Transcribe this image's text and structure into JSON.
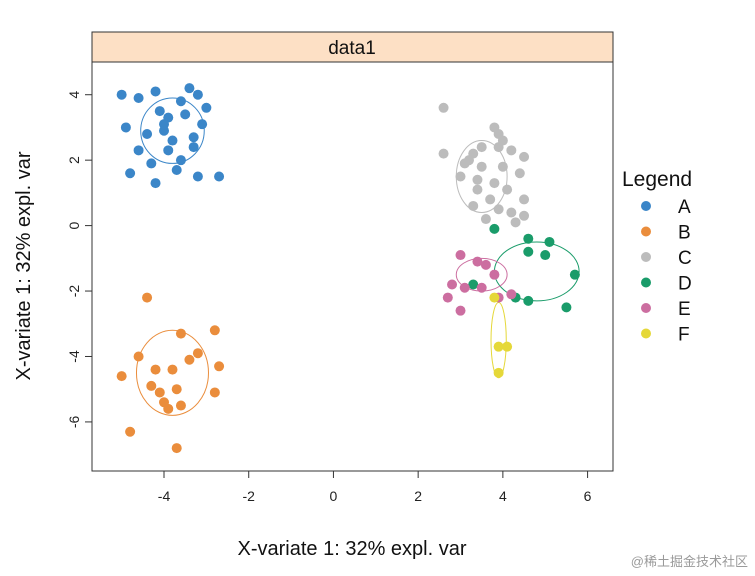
{
  "chart_data": {
    "type": "scatter",
    "panel_title": "data1",
    "xlabel": "X-variate 1: 32% expl. var",
    "ylabel": "X-variate 1: 32% expl. var",
    "xlim": [
      -5.7,
      6.6
    ],
    "ylim": [
      -7.5,
      5.0
    ],
    "xticks": [
      -4,
      -2,
      0,
      2,
      4,
      6
    ],
    "yticks": [
      -6,
      -4,
      -2,
      0,
      2,
      4
    ],
    "grid": false,
    "legend_title": "Legend",
    "legend_position": "right",
    "series": [
      {
        "name": "A",
        "color": "#3b86c8",
        "ellipse": {
          "cx": -3.8,
          "cy": 2.9,
          "rx": 0.75,
          "ry": 1.0
        },
        "points": [
          [
            -5.0,
            4.0
          ],
          [
            -4.6,
            3.9
          ],
          [
            -4.2,
            4.1
          ],
          [
            -3.6,
            3.8
          ],
          [
            -3.2,
            4.0
          ],
          [
            -4.9,
            3.0
          ],
          [
            -4.1,
            3.5
          ],
          [
            -3.9,
            3.3
          ],
          [
            -3.5,
            3.4
          ],
          [
            -3.0,
            3.6
          ],
          [
            -4.4,
            2.8
          ],
          [
            -4.0,
            2.9
          ],
          [
            -3.8,
            2.6
          ],
          [
            -3.3,
            2.7
          ],
          [
            -3.1,
            3.1
          ],
          [
            -4.6,
            2.3
          ],
          [
            -3.9,
            2.3
          ],
          [
            -3.3,
            2.4
          ],
          [
            -4.3,
            1.9
          ],
          [
            -3.7,
            1.7
          ],
          [
            -4.8,
            1.6
          ],
          [
            -4.2,
            1.3
          ],
          [
            -3.2,
            1.5
          ],
          [
            -2.7,
            1.5
          ],
          [
            -3.4,
            4.2
          ],
          [
            -4.0,
            3.1
          ],
          [
            -3.6,
            2.0
          ]
        ]
      },
      {
        "name": "B",
        "color": "#ea8d3c",
        "ellipse": {
          "cx": -3.8,
          "cy": -4.5,
          "rx": 0.85,
          "ry": 1.3
        },
        "points": [
          [
            -4.4,
            -2.2
          ],
          [
            -3.6,
            -3.3
          ],
          [
            -2.8,
            -3.2
          ],
          [
            -3.2,
            -3.9
          ],
          [
            -4.6,
            -4.0
          ],
          [
            -3.4,
            -4.1
          ],
          [
            -4.2,
            -4.4
          ],
          [
            -3.8,
            -4.4
          ],
          [
            -2.7,
            -4.3
          ],
          [
            -5.0,
            -4.6
          ],
          [
            -4.3,
            -4.9
          ],
          [
            -4.1,
            -5.1
          ],
          [
            -3.7,
            -5.0
          ],
          [
            -2.8,
            -5.1
          ],
          [
            -4.0,
            -5.4
          ],
          [
            -3.6,
            -5.5
          ],
          [
            -3.9,
            -5.6
          ],
          [
            -4.8,
            -6.3
          ],
          [
            -3.7,
            -6.8
          ]
        ]
      },
      {
        "name": "C",
        "color": "#bcbcbc",
        "ellipse": {
          "cx": 3.5,
          "cy": 1.5,
          "rx": 0.6,
          "ry": 1.1
        },
        "points": [
          [
            2.6,
            3.6
          ],
          [
            3.8,
            3.0
          ],
          [
            3.9,
            2.8
          ],
          [
            4.0,
            2.6
          ],
          [
            3.5,
            2.4
          ],
          [
            2.6,
            2.2
          ],
          [
            3.3,
            2.2
          ],
          [
            4.2,
            2.3
          ],
          [
            4.5,
            2.1
          ],
          [
            3.1,
            1.9
          ],
          [
            3.5,
            1.8
          ],
          [
            4.0,
            1.8
          ],
          [
            4.4,
            1.6
          ],
          [
            3.0,
            1.5
          ],
          [
            3.4,
            1.4
          ],
          [
            3.8,
            1.3
          ],
          [
            3.4,
            1.1
          ],
          [
            4.1,
            1.1
          ],
          [
            3.7,
            0.8
          ],
          [
            4.5,
            0.8
          ],
          [
            3.3,
            0.6
          ],
          [
            3.9,
            0.5
          ],
          [
            4.2,
            0.4
          ],
          [
            4.5,
            0.3
          ],
          [
            3.6,
            0.2
          ],
          [
            4.3,
            0.1
          ],
          [
            3.9,
            2.4
          ],
          [
            3.2,
            2.0
          ]
        ]
      },
      {
        "name": "D",
        "color": "#1a9c6a",
        "ellipse": {
          "cx": 4.8,
          "cy": -1.4,
          "rx": 1.0,
          "ry": 0.9
        },
        "points": [
          [
            3.8,
            -0.1
          ],
          [
            4.6,
            -0.4
          ],
          [
            5.1,
            -0.5
          ],
          [
            4.6,
            -0.8
          ],
          [
            5.0,
            -0.9
          ],
          [
            5.7,
            -1.5
          ],
          [
            3.3,
            -1.8
          ],
          [
            4.3,
            -2.2
          ],
          [
            4.6,
            -2.3
          ],
          [
            5.5,
            -2.5
          ]
        ]
      },
      {
        "name": "E",
        "color": "#cc6ea0",
        "ellipse": {
          "cx": 3.5,
          "cy": -1.5,
          "rx": 0.6,
          "ry": 0.5
        },
        "points": [
          [
            3.0,
            -0.9
          ],
          [
            3.4,
            -1.1
          ],
          [
            3.6,
            -1.2
          ],
          [
            3.8,
            -1.5
          ],
          [
            2.8,
            -1.8
          ],
          [
            3.5,
            -1.9
          ],
          [
            3.1,
            -1.9
          ],
          [
            4.2,
            -2.1
          ],
          [
            2.7,
            -2.2
          ],
          [
            3.9,
            -2.2
          ],
          [
            3.0,
            -2.6
          ]
        ]
      },
      {
        "name": "F",
        "color": "#e5d839",
        "ellipse": {
          "cx": 3.9,
          "cy": -3.5,
          "rx": 0.18,
          "ry": 1.15
        },
        "points": [
          [
            3.8,
            -2.2
          ],
          [
            3.9,
            -3.7
          ],
          [
            4.1,
            -3.7
          ],
          [
            3.9,
            -4.5
          ]
        ]
      }
    ]
  },
  "watermark": "@稀土掘金技术社区"
}
